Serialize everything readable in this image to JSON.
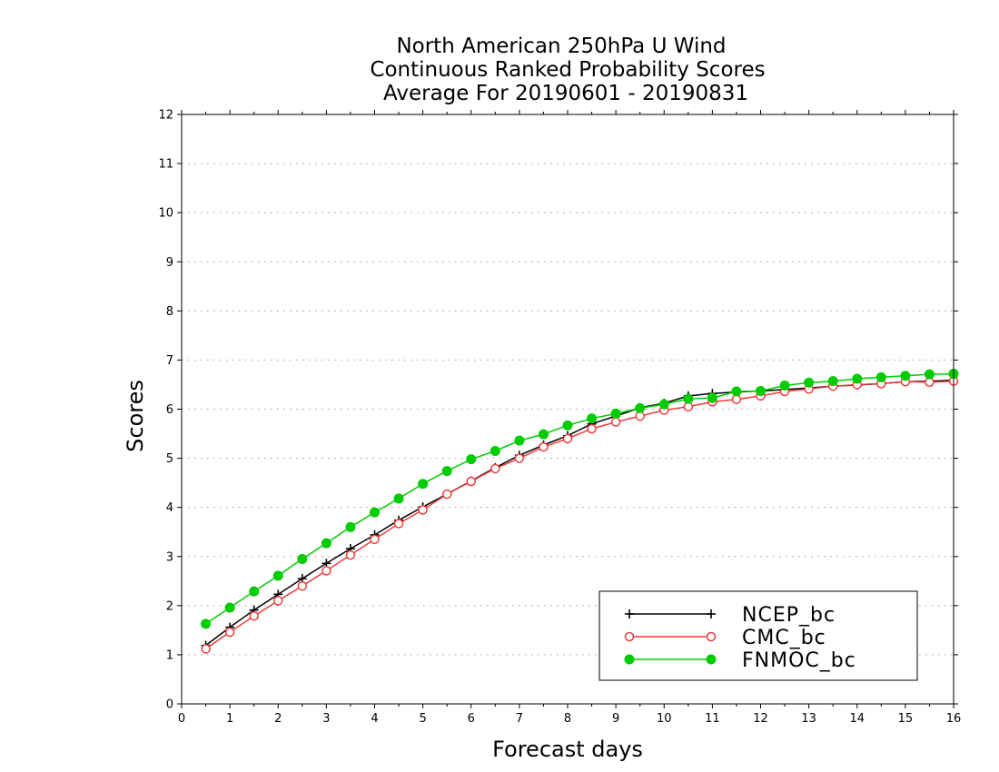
{
  "chart_data": {
    "type": "line",
    "title": [
      "North American 250hPa U Wind",
      "Continuous Ranked Probability Scores",
      "Average For 20190601 - 20190831"
    ],
    "xlabel": "Forecast days",
    "ylabel": "Scores",
    "xlim": [
      0,
      16
    ],
    "ylim": [
      0,
      12
    ],
    "xticks": [
      "0",
      "1",
      "2",
      "3",
      "4",
      "5",
      "6",
      "7",
      "8",
      "9",
      "10",
      "11",
      "12",
      "13",
      "14",
      "15",
      "16"
    ],
    "yticks": [
      "0",
      "1",
      "2",
      "3",
      "4",
      "5",
      "6",
      "7",
      "8",
      "9",
      "10",
      "11",
      "12"
    ],
    "grid": true,
    "legend_position": "bottom-right",
    "x": [
      0.5,
      1,
      1.5,
      2,
      2.5,
      3,
      3.5,
      4,
      4.5,
      5,
      5.5,
      6,
      6.5,
      7,
      7.5,
      8,
      8.5,
      9,
      9.5,
      10,
      10.5,
      11,
      11.5,
      12,
      12.5,
      13,
      13.5,
      14,
      14.5,
      15,
      15.5,
      16
    ],
    "series": [
      {
        "name": "NCEP_bc",
        "color": "#000000",
        "marker": "plus",
        "values": [
          1.19,
          1.56,
          1.91,
          2.23,
          2.55,
          2.86,
          3.16,
          3.44,
          3.74,
          4.01,
          4.27,
          4.54,
          4.81,
          5.06,
          5.27,
          5.46,
          5.7,
          5.86,
          6.03,
          6.12,
          6.27,
          6.32,
          6.35,
          6.37,
          6.4,
          6.43,
          6.47,
          6.49,
          6.52,
          6.56,
          6.57,
          6.59
        ]
      },
      {
        "name": "CMC_bc",
        "color": "#ee3b3b",
        "marker": "open-circle",
        "values": [
          1.12,
          1.46,
          1.79,
          2.1,
          2.4,
          2.71,
          3.03,
          3.35,
          3.67,
          3.95,
          4.27,
          4.53,
          4.79,
          5.0,
          5.23,
          5.4,
          5.6,
          5.74,
          5.86,
          5.98,
          6.05,
          6.15,
          6.2,
          6.27,
          6.36,
          6.41,
          6.47,
          6.5,
          6.52,
          6.56,
          6.55,
          6.57
        ]
      },
      {
        "name": "FNMOC_bc",
        "color": "#00cc00",
        "marker": "filled-circle",
        "values": [
          1.63,
          1.96,
          2.29,
          2.61,
          2.95,
          3.27,
          3.6,
          3.9,
          4.18,
          4.48,
          4.74,
          4.98,
          5.15,
          5.36,
          5.49,
          5.67,
          5.81,
          5.91,
          6.02,
          6.1,
          6.21,
          6.23,
          6.36,
          6.37,
          6.48,
          6.54,
          6.57,
          6.62,
          6.65,
          6.68,
          6.71,
          6.72
        ]
      }
    ]
  }
}
